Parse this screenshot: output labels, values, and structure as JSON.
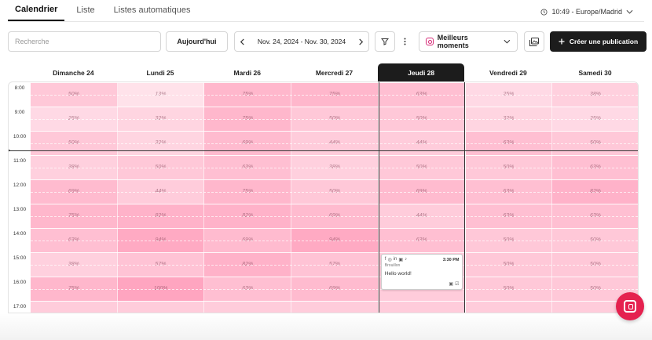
{
  "tabs": [
    {
      "label": "Calendrier",
      "active": true
    },
    {
      "label": "Liste",
      "active": false
    },
    {
      "label": "Listes automatiques",
      "active": false
    }
  ],
  "timezone": {
    "label": "10:49 - Europe/Madrid",
    "icon": "clock-icon"
  },
  "toolbar": {
    "search_placeholder": "Recherche",
    "today_label": "Aujourd'hui",
    "date_range": "Nov. 24, 2024 - Nov. 30, 2024",
    "best_times_label": "Meilleurs moments",
    "create_label": "Créer une publication"
  },
  "days": [
    {
      "label": "Dimanche 24",
      "today": false
    },
    {
      "label": "Lundi 25",
      "today": false
    },
    {
      "label": "Mardi 26",
      "today": false
    },
    {
      "label": "Mercredi 27",
      "today": false
    },
    {
      "label": "Jeudi 28",
      "today": true
    },
    {
      "label": "Vendredi 29",
      "today": false
    },
    {
      "label": "Samedi 30",
      "today": false
    }
  ],
  "hours": [
    "8:00",
    "9:00",
    "10:00",
    "11:00",
    "12:00",
    "13:00",
    "14:00",
    "15:00",
    "16:00",
    "17:00"
  ],
  "heat": [
    [
      "50%",
      "13%",
      "75%",
      "75%",
      "63%",
      "25%",
      "38%"
    ],
    [
      "25%",
      "32%",
      "75%",
      "50%",
      "50%",
      "32%",
      "25%"
    ],
    [
      "50%",
      "32%",
      "69%",
      "44%",
      "44%",
      "63%",
      "50%"
    ],
    [
      "38%",
      "50%",
      "63%",
      "38%",
      "50%",
      "50%",
      "63%"
    ],
    [
      "69%",
      "44%",
      "75%",
      "50%",
      "69%",
      "63%",
      "82%"
    ],
    [
      "75%",
      "82%",
      "82%",
      "69%",
      "44%",
      "63%",
      "63%"
    ],
    [
      "63%",
      "94%",
      "69%",
      "94%",
      "63%",
      "50%",
      "50%"
    ],
    [
      "38%",
      "57%",
      "82%",
      "57%",
      "",
      "50%",
      "50%"
    ],
    [
      "75%",
      "100%",
      "63%",
      "69%",
      "",
      "50%",
      "50%"
    ],
    [
      "",
      "",
      "",
      "",
      "",
      "",
      ""
    ]
  ],
  "post": {
    "time": "3:30 PM",
    "status": "Brouillon",
    "text": "Hello world!",
    "networks": [
      "facebook-icon",
      "instagram-icon",
      "linkedin-icon",
      "google-icon",
      "tiktok-icon"
    ]
  },
  "colors": {
    "heat_base": "#ff8fb0",
    "today_header": "#1c1c1c",
    "help": "#e5214f"
  }
}
